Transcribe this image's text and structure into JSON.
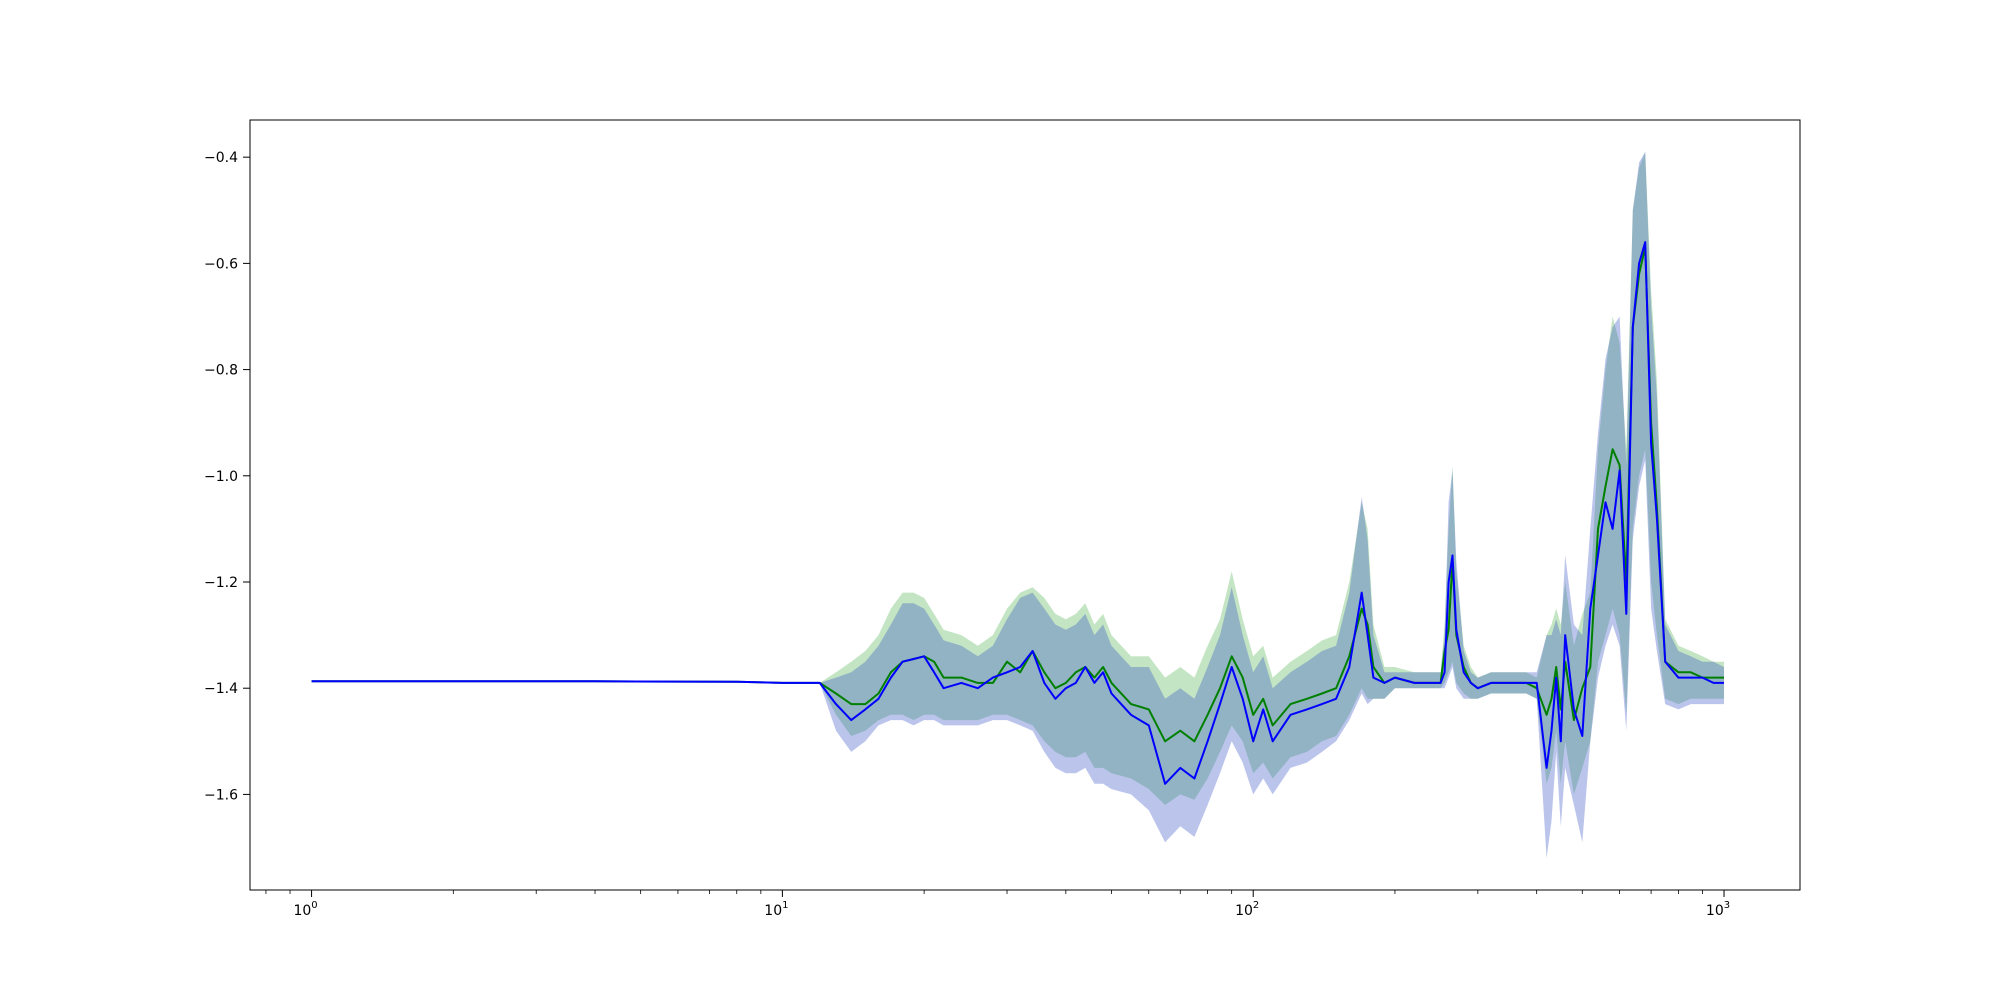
{
  "chart_data": {
    "type": "line",
    "title": "",
    "xlabel": "",
    "ylabel": "",
    "xscale": "log",
    "xlim": [
      0.74,
      1450
    ],
    "ylim": [
      -1.78,
      -0.33
    ],
    "grid": false,
    "legend": "none",
    "x_ticks": [
      {
        "base": "10",
        "exp": "0",
        "value": 1
      },
      {
        "base": "10",
        "exp": "1",
        "value": 10
      },
      {
        "base": "10",
        "exp": "2",
        "value": 100
      },
      {
        "base": "10",
        "exp": "3",
        "value": 1000
      }
    ],
    "y_ticks": [
      {
        "label": "−0.4",
        "value": -0.4
      },
      {
        "label": "−0.6",
        "value": -0.6
      },
      {
        "label": "−0.8",
        "value": -0.8
      },
      {
        "label": "−1.0",
        "value": -1.0
      },
      {
        "label": "−1.2",
        "value": -1.2
      },
      {
        "label": "−1.4",
        "value": -1.4
      },
      {
        "label": "−1.6",
        "value": -1.6
      }
    ],
    "colors": {
      "green_line": "#008000",
      "blue_line": "#0000ff",
      "green_band": "#2ca02c",
      "blue_band": "#1f3fbf",
      "overlap_band": "#a0b2d3"
    },
    "x": [
      1,
      2,
      4,
      8,
      10,
      12,
      13,
      14,
      15,
      16,
      17,
      18,
      19,
      20,
      21,
      22,
      24,
      26,
      28,
      30,
      32,
      34,
      36,
      38,
      40,
      42,
      44,
      46,
      48,
      50,
      55,
      60,
      65,
      70,
      75,
      80,
      85,
      90,
      95,
      100,
      105,
      110,
      120,
      130,
      140,
      150,
      160,
      170,
      175,
      180,
      190,
      200,
      220,
      240,
      250,
      255,
      260,
      265,
      270,
      280,
      290,
      300,
      320,
      350,
      380,
      400,
      420,
      430,
      440,
      450,
      460,
      480,
      500,
      520,
      540,
      560,
      580,
      600,
      620,
      640,
      660,
      680,
      700,
      720,
      750,
      800,
      850,
      900,
      950,
      1000
    ],
    "series": [
      {
        "color": "green",
        "values": [
          -1.387,
          -1.387,
          -1.387,
          -1.388,
          -1.39,
          -1.39,
          -1.41,
          -1.43,
          -1.43,
          -1.41,
          -1.37,
          -1.35,
          -1.345,
          -1.34,
          -1.35,
          -1.38,
          -1.38,
          -1.39,
          -1.39,
          -1.35,
          -1.37,
          -1.33,
          -1.37,
          -1.4,
          -1.39,
          -1.37,
          -1.36,
          -1.38,
          -1.36,
          -1.39,
          -1.43,
          -1.44,
          -1.5,
          -1.48,
          -1.5,
          -1.45,
          -1.4,
          -1.34,
          -1.38,
          -1.45,
          -1.42,
          -1.47,
          -1.43,
          -1.42,
          -1.41,
          -1.4,
          -1.34,
          -1.25,
          -1.28,
          -1.36,
          -1.39,
          -1.38,
          -1.39,
          -1.39,
          -1.39,
          -1.33,
          -1.29,
          -1.16,
          -1.3,
          -1.36,
          -1.39,
          -1.4,
          -1.39,
          -1.39,
          -1.39,
          -1.4,
          -1.45,
          -1.42,
          -1.36,
          -1.44,
          -1.35,
          -1.46,
          -1.4,
          -1.36,
          -1.1,
          -1.02,
          -0.95,
          -0.98,
          -1.2,
          -0.72,
          -0.62,
          -0.57,
          -0.9,
          -1.06,
          -1.35,
          -1.37,
          -1.37,
          -1.38,
          -1.38,
          -1.38
        ]
      },
      {
        "color": "blue",
        "values": [
          -1.387,
          -1.387,
          -1.387,
          -1.388,
          -1.39,
          -1.39,
          -1.43,
          -1.46,
          -1.44,
          -1.42,
          -1.38,
          -1.35,
          -1.345,
          -1.34,
          -1.37,
          -1.4,
          -1.39,
          -1.4,
          -1.38,
          -1.37,
          -1.36,
          -1.33,
          -1.39,
          -1.42,
          -1.4,
          -1.39,
          -1.36,
          -1.39,
          -1.37,
          -1.41,
          -1.45,
          -1.47,
          -1.58,
          -1.55,
          -1.57,
          -1.5,
          -1.43,
          -1.36,
          -1.42,
          -1.5,
          -1.44,
          -1.5,
          -1.45,
          -1.44,
          -1.43,
          -1.42,
          -1.36,
          -1.22,
          -1.3,
          -1.38,
          -1.39,
          -1.38,
          -1.39,
          -1.39,
          -1.39,
          -1.37,
          -1.2,
          -1.15,
          -1.29,
          -1.37,
          -1.39,
          -1.4,
          -1.39,
          -1.39,
          -1.39,
          -1.39,
          -1.55,
          -1.48,
          -1.38,
          -1.5,
          -1.3,
          -1.44,
          -1.49,
          -1.25,
          -1.15,
          -1.05,
          -1.1,
          -0.99,
          -1.26,
          -0.72,
          -0.6,
          -0.56,
          -0.94,
          -1.08,
          -1.35,
          -1.38,
          -1.38,
          -1.38,
          -1.39,
          -1.39
        ]
      }
    ],
    "bands": [
      {
        "color": "green",
        "lower": [
          -1.387,
          -1.387,
          -1.387,
          -1.388,
          -1.39,
          -1.39,
          -1.45,
          -1.49,
          -1.48,
          -1.46,
          -1.45,
          -1.45,
          -1.46,
          -1.45,
          -1.45,
          -1.46,
          -1.46,
          -1.46,
          -1.45,
          -1.45,
          -1.46,
          -1.47,
          -1.5,
          -1.52,
          -1.53,
          -1.53,
          -1.52,
          -1.55,
          -1.55,
          -1.56,
          -1.57,
          -1.59,
          -1.62,
          -1.6,
          -1.61,
          -1.57,
          -1.52,
          -1.47,
          -1.5,
          -1.56,
          -1.54,
          -1.57,
          -1.53,
          -1.52,
          -1.5,
          -1.49,
          -1.45,
          -1.4,
          -1.42,
          -1.42,
          -1.42,
          -1.4,
          -1.4,
          -1.4,
          -1.4,
          -1.39,
          -1.37,
          -1.35,
          -1.39,
          -1.41,
          -1.42,
          -1.42,
          -1.41,
          -1.41,
          -1.41,
          -1.42,
          -1.58,
          -1.55,
          -1.48,
          -1.58,
          -1.5,
          -1.6,
          -1.55,
          -1.5,
          -1.35,
          -1.3,
          -1.25,
          -1.3,
          -1.45,
          -1.1,
          -1.0,
          -0.95,
          -1.2,
          -1.3,
          -1.42,
          -1.43,
          -1.42,
          -1.42,
          -1.42,
          -1.42
        ],
        "upper": [
          -1.387,
          -1.387,
          -1.387,
          -1.388,
          -1.39,
          -1.39,
          -1.37,
          -1.35,
          -1.33,
          -1.3,
          -1.25,
          -1.22,
          -1.22,
          -1.23,
          -1.26,
          -1.29,
          -1.3,
          -1.32,
          -1.3,
          -1.25,
          -1.22,
          -1.21,
          -1.23,
          -1.26,
          -1.27,
          -1.26,
          -1.24,
          -1.28,
          -1.26,
          -1.3,
          -1.34,
          -1.34,
          -1.38,
          -1.36,
          -1.38,
          -1.32,
          -1.27,
          -1.18,
          -1.27,
          -1.34,
          -1.32,
          -1.38,
          -1.35,
          -1.33,
          -1.31,
          -1.3,
          -1.2,
          -1.05,
          -1.1,
          -1.28,
          -1.36,
          -1.36,
          -1.37,
          -1.37,
          -1.37,
          -1.28,
          -1.1,
          -0.98,
          -1.18,
          -1.32,
          -1.36,
          -1.38,
          -1.37,
          -1.37,
          -1.37,
          -1.38,
          -1.3,
          -1.28,
          -1.25,
          -1.28,
          -1.2,
          -1.32,
          -1.26,
          -1.22,
          -0.95,
          -0.8,
          -0.7,
          -0.75,
          -0.95,
          -0.5,
          -0.42,
          -0.39,
          -0.65,
          -0.82,
          -1.27,
          -1.32,
          -1.33,
          -1.34,
          -1.35,
          -1.35
        ]
      },
      {
        "color": "blue",
        "lower": [
          -1.387,
          -1.387,
          -1.387,
          -1.388,
          -1.39,
          -1.39,
          -1.48,
          -1.52,
          -1.5,
          -1.47,
          -1.46,
          -1.46,
          -1.47,
          -1.46,
          -1.46,
          -1.47,
          -1.47,
          -1.47,
          -1.46,
          -1.46,
          -1.47,
          -1.48,
          -1.52,
          -1.55,
          -1.56,
          -1.56,
          -1.55,
          -1.58,
          -1.58,
          -1.59,
          -1.6,
          -1.63,
          -1.69,
          -1.66,
          -1.68,
          -1.62,
          -1.56,
          -1.5,
          -1.54,
          -1.6,
          -1.57,
          -1.6,
          -1.55,
          -1.54,
          -1.52,
          -1.5,
          -1.46,
          -1.41,
          -1.43,
          -1.42,
          -1.42,
          -1.4,
          -1.4,
          -1.4,
          -1.4,
          -1.4,
          -1.38,
          -1.36,
          -1.4,
          -1.42,
          -1.42,
          -1.42,
          -1.41,
          -1.41,
          -1.41,
          -1.42,
          -1.72,
          -1.65,
          -1.52,
          -1.66,
          -1.55,
          -1.62,
          -1.69,
          -1.5,
          -1.38,
          -1.32,
          -1.28,
          -1.32,
          -1.48,
          -1.12,
          -1.02,
          -0.97,
          -1.25,
          -1.33,
          -1.43,
          -1.44,
          -1.43,
          -1.43,
          -1.43,
          -1.43
        ],
        "upper": [
          -1.387,
          -1.387,
          -1.387,
          -1.388,
          -1.39,
          -1.39,
          -1.38,
          -1.37,
          -1.35,
          -1.32,
          -1.28,
          -1.24,
          -1.24,
          -1.25,
          -1.28,
          -1.31,
          -1.32,
          -1.34,
          -1.32,
          -1.27,
          -1.23,
          -1.22,
          -1.25,
          -1.28,
          -1.29,
          -1.28,
          -1.26,
          -1.3,
          -1.28,
          -1.32,
          -1.36,
          -1.36,
          -1.42,
          -1.4,
          -1.42,
          -1.36,
          -1.3,
          -1.21,
          -1.3,
          -1.37,
          -1.34,
          -1.4,
          -1.37,
          -1.35,
          -1.33,
          -1.32,
          -1.22,
          -1.04,
          -1.12,
          -1.3,
          -1.37,
          -1.37,
          -1.37,
          -1.37,
          -1.37,
          -1.3,
          -1.05,
          -0.99,
          -1.16,
          -1.33,
          -1.37,
          -1.38,
          -1.37,
          -1.37,
          -1.37,
          -1.37,
          -1.3,
          -1.3,
          -1.27,
          -1.3,
          -1.15,
          -1.28,
          -1.3,
          -1.1,
          -0.92,
          -0.78,
          -0.72,
          -0.7,
          -0.98,
          -0.5,
          -0.41,
          -0.39,
          -0.68,
          -0.85,
          -1.28,
          -1.33,
          -1.34,
          -1.35,
          -1.35,
          -1.36
        ]
      }
    ]
  }
}
